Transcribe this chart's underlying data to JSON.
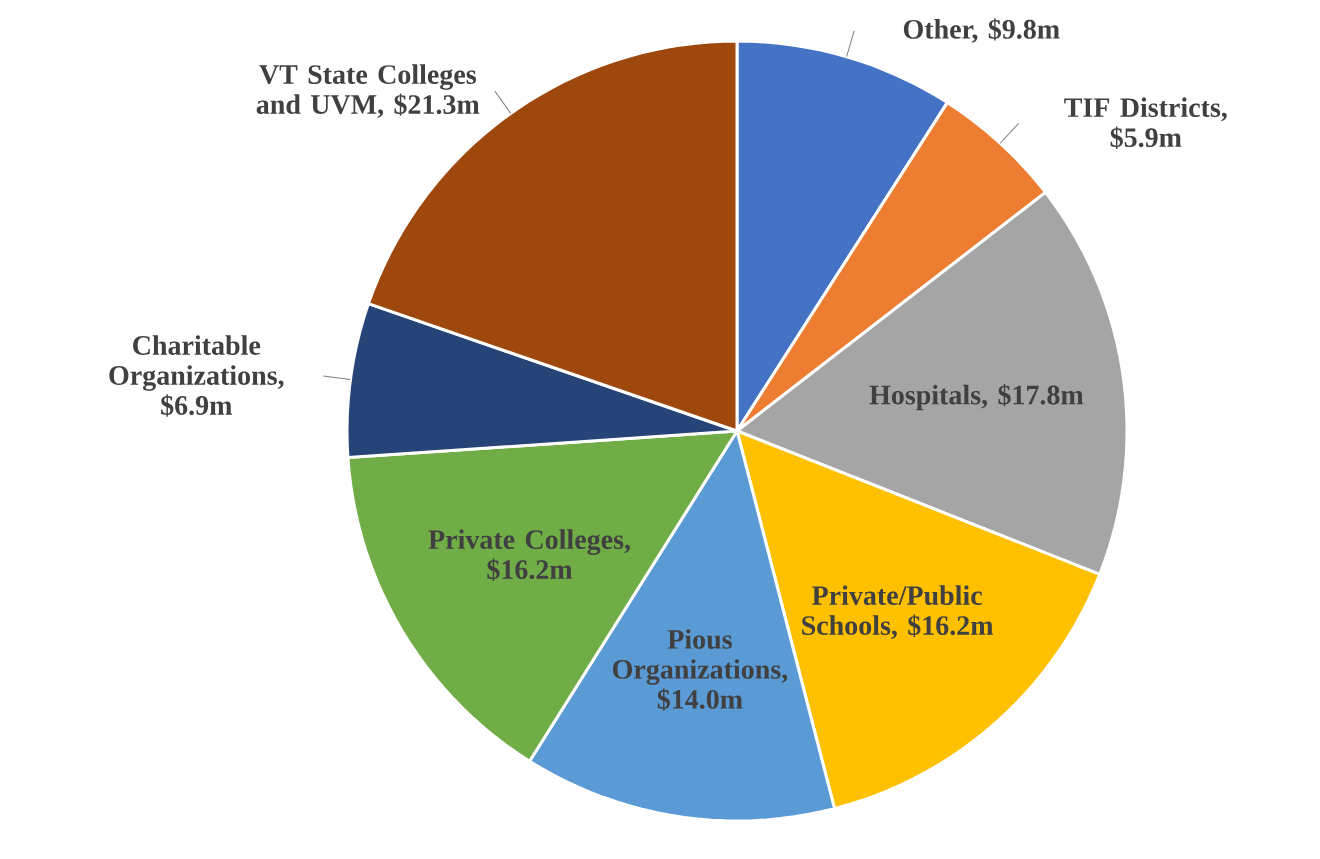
{
  "chart_data": {
    "type": "pie",
    "categories": [
      "Other, $9.8m",
      "TIF Districts, $5.9m",
      "Hospitals, $17.8m",
      "Private/Public Schools, $16.2m",
      "Pious Organizations, $14.0m",
      "Private Colleges, $16.2m",
      "Charitable Organizations, $6.9m",
      "VT State Colleges and UVM, $21.3m"
    ],
    "values": [
      9.8,
      5.9,
      17.8,
      16.2,
      14.0,
      16.2,
      6.9,
      21.3
    ],
    "colors": [
      "#4472c4",
      "#ed7d31",
      "#a5a5a5",
      "#ffc000",
      "#5b9bd5",
      "#70ad47",
      "#264478",
      "#9e480e"
    ]
  }
}
